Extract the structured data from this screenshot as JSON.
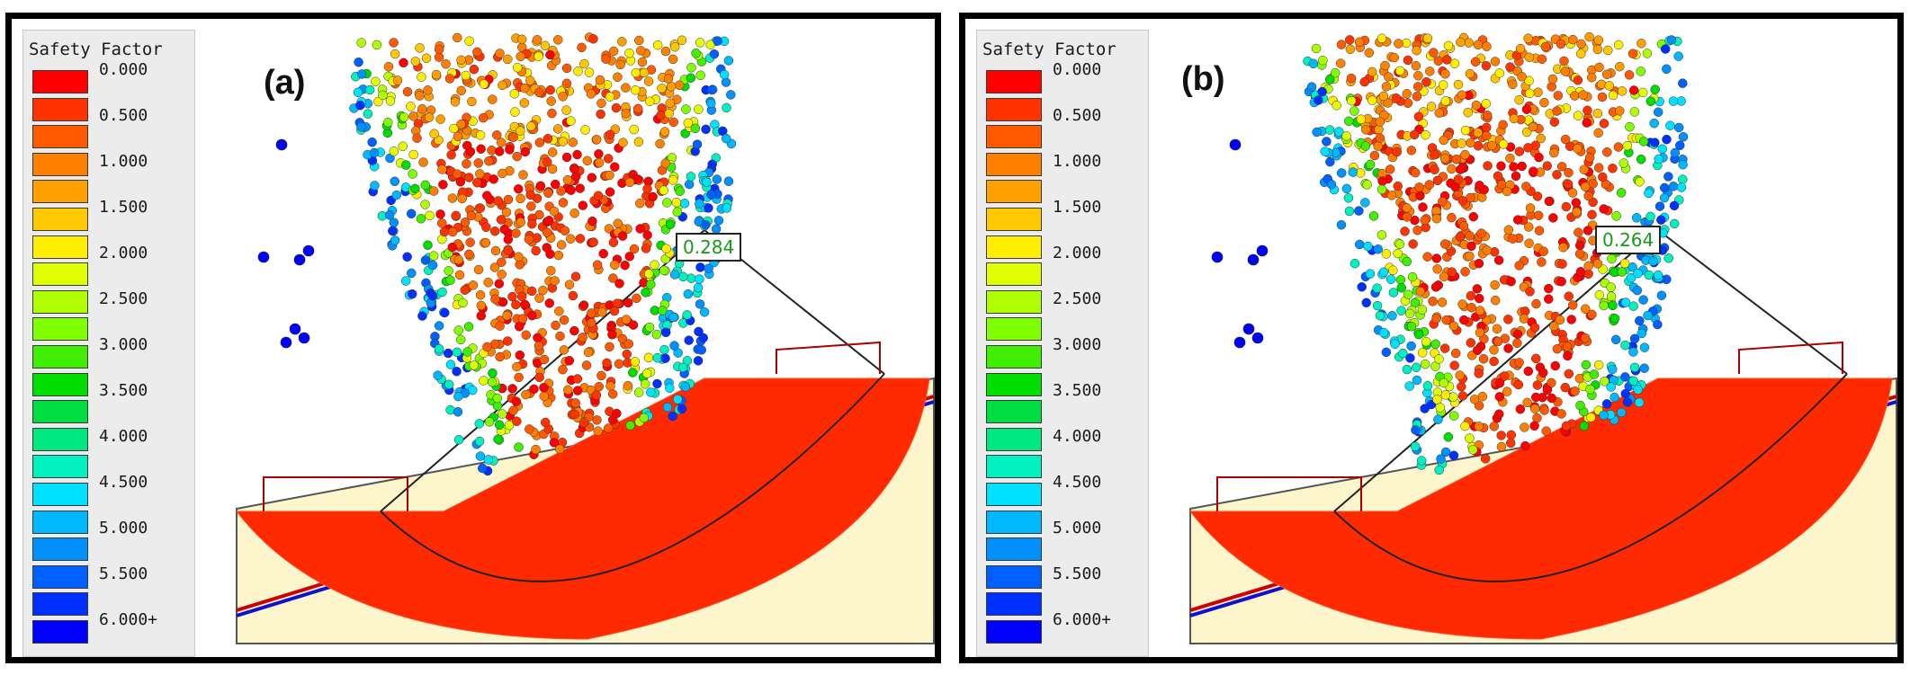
{
  "legend": {
    "title": "Safety Factor",
    "ticks": [
      "0.000",
      "0.500",
      "1.000",
      "1.500",
      "2.000",
      "2.500",
      "3.000",
      "3.500",
      "4.000",
      "4.500",
      "5.000",
      "5.500",
      "6.000+"
    ],
    "colors": [
      "#ff0000",
      "#ff3300",
      "#ff5a00",
      "#ff8000",
      "#ffa000",
      "#ffc800",
      "#ffee00",
      "#e0ff00",
      "#b0ff00",
      "#80ff00",
      "#40ee00",
      "#00dd00",
      "#00dd40",
      "#00e880",
      "#00f0c0",
      "#00e0ff",
      "#00b8ff",
      "#0090ff",
      "#0060ff",
      "#0030ff",
      "#0000ff"
    ]
  },
  "panels": [
    {
      "label": "(a)",
      "safety_factor": "0.284"
    },
    {
      "label": "(b)",
      "safety_factor": "0.264"
    }
  ]
}
